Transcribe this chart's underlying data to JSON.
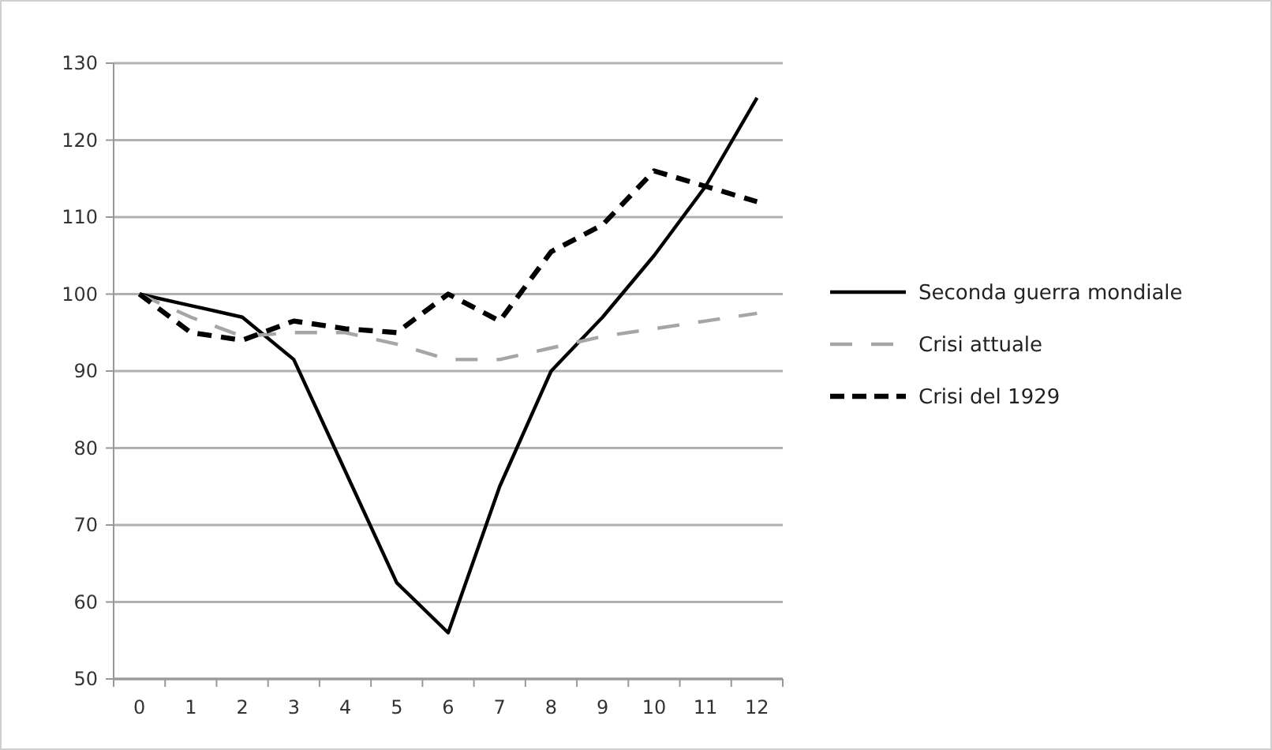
{
  "chart_data": {
    "type": "line",
    "x": [
      0,
      1,
      2,
      3,
      4,
      5,
      6,
      7,
      8,
      9,
      10,
      11,
      12
    ],
    "xlim": [
      -0.5,
      12.5
    ],
    "xticks": [
      0,
      1,
      2,
      3,
      4,
      5,
      6,
      7,
      8,
      9,
      10,
      11,
      12
    ],
    "ylim": [
      50,
      130
    ],
    "yticks": [
      50,
      60,
      70,
      80,
      90,
      100,
      110,
      120,
      130
    ],
    "grid": "y",
    "legend": "right",
    "marker": "none",
    "series": [
      {
        "name": "Seconda guerra mondiale",
        "color": "#000000",
        "line_style": "solid",
        "values": [
          100,
          98.5,
          97,
          91.5,
          77,
          62.5,
          56,
          75,
          90,
          97,
          105,
          114,
          125.5
        ]
      },
      {
        "name": "Crisi attuale",
        "color": "#a6a6a6",
        "line_style": "dashed",
        "values": [
          100,
          97,
          94.5,
          95,
          95,
          93.5,
          91.5,
          91.5,
          93,
          94.5,
          95.5,
          96.5,
          97.5
        ]
      },
      {
        "name": "Crisi del 1929",
        "color": "#000000",
        "line_style": "dashed",
        "values": [
          100,
          95,
          94,
          96.5,
          95.5,
          95,
          100,
          96.5,
          105.5,
          109,
          116,
          114,
          112
        ]
      }
    ]
  }
}
